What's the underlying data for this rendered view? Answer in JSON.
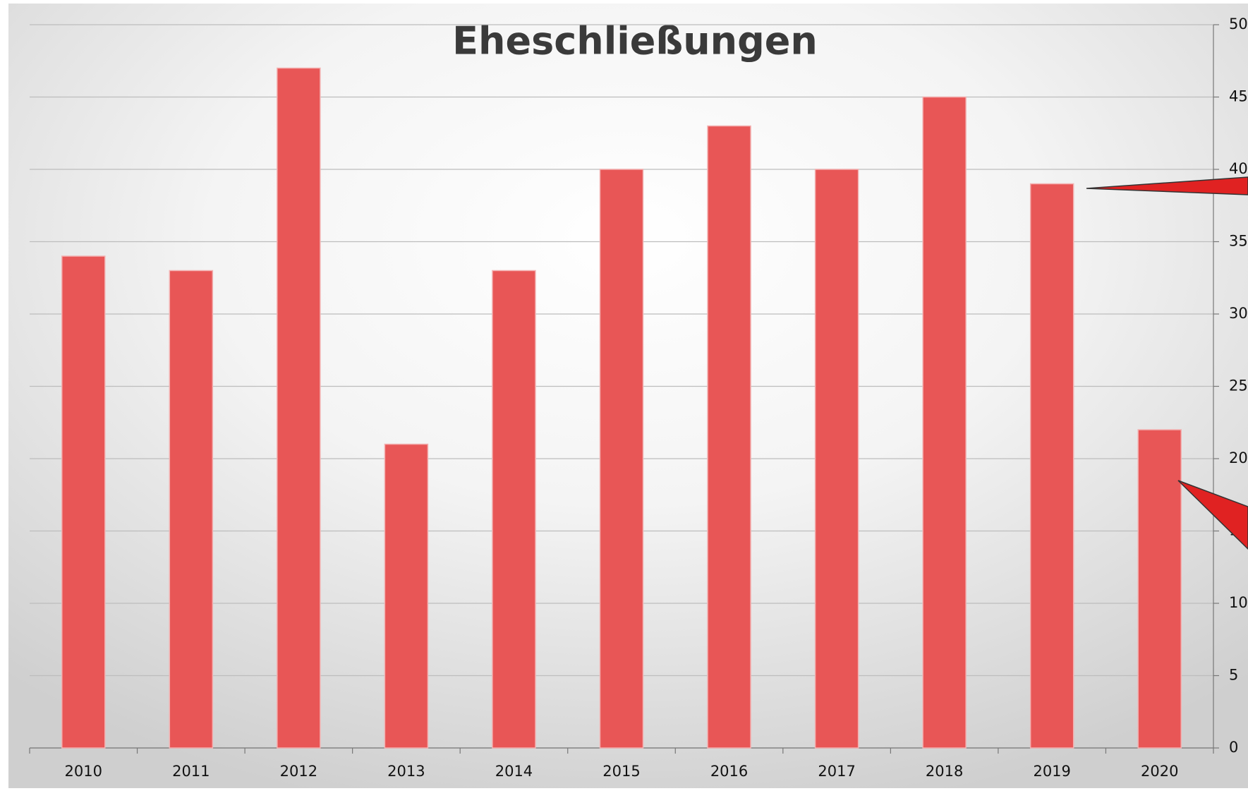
{
  "chart_data": {
    "type": "bar",
    "title": "Eheschließungen",
    "categories": [
      "2010",
      "2011",
      "2012",
      "2013",
      "2014",
      "2015",
      "2016",
      "2017",
      "2018",
      "2019",
      "2020"
    ],
    "values": [
      34,
      33,
      47,
      21,
      33,
      40,
      43,
      40,
      45,
      39,
      22
    ],
    "color": "#e85656",
    "ylim": [
      0,
      50
    ],
    "yticks": [
      0,
      5,
      10,
      15,
      20,
      25,
      30,
      35,
      40,
      45,
      50
    ],
    "grid": true
  }
}
